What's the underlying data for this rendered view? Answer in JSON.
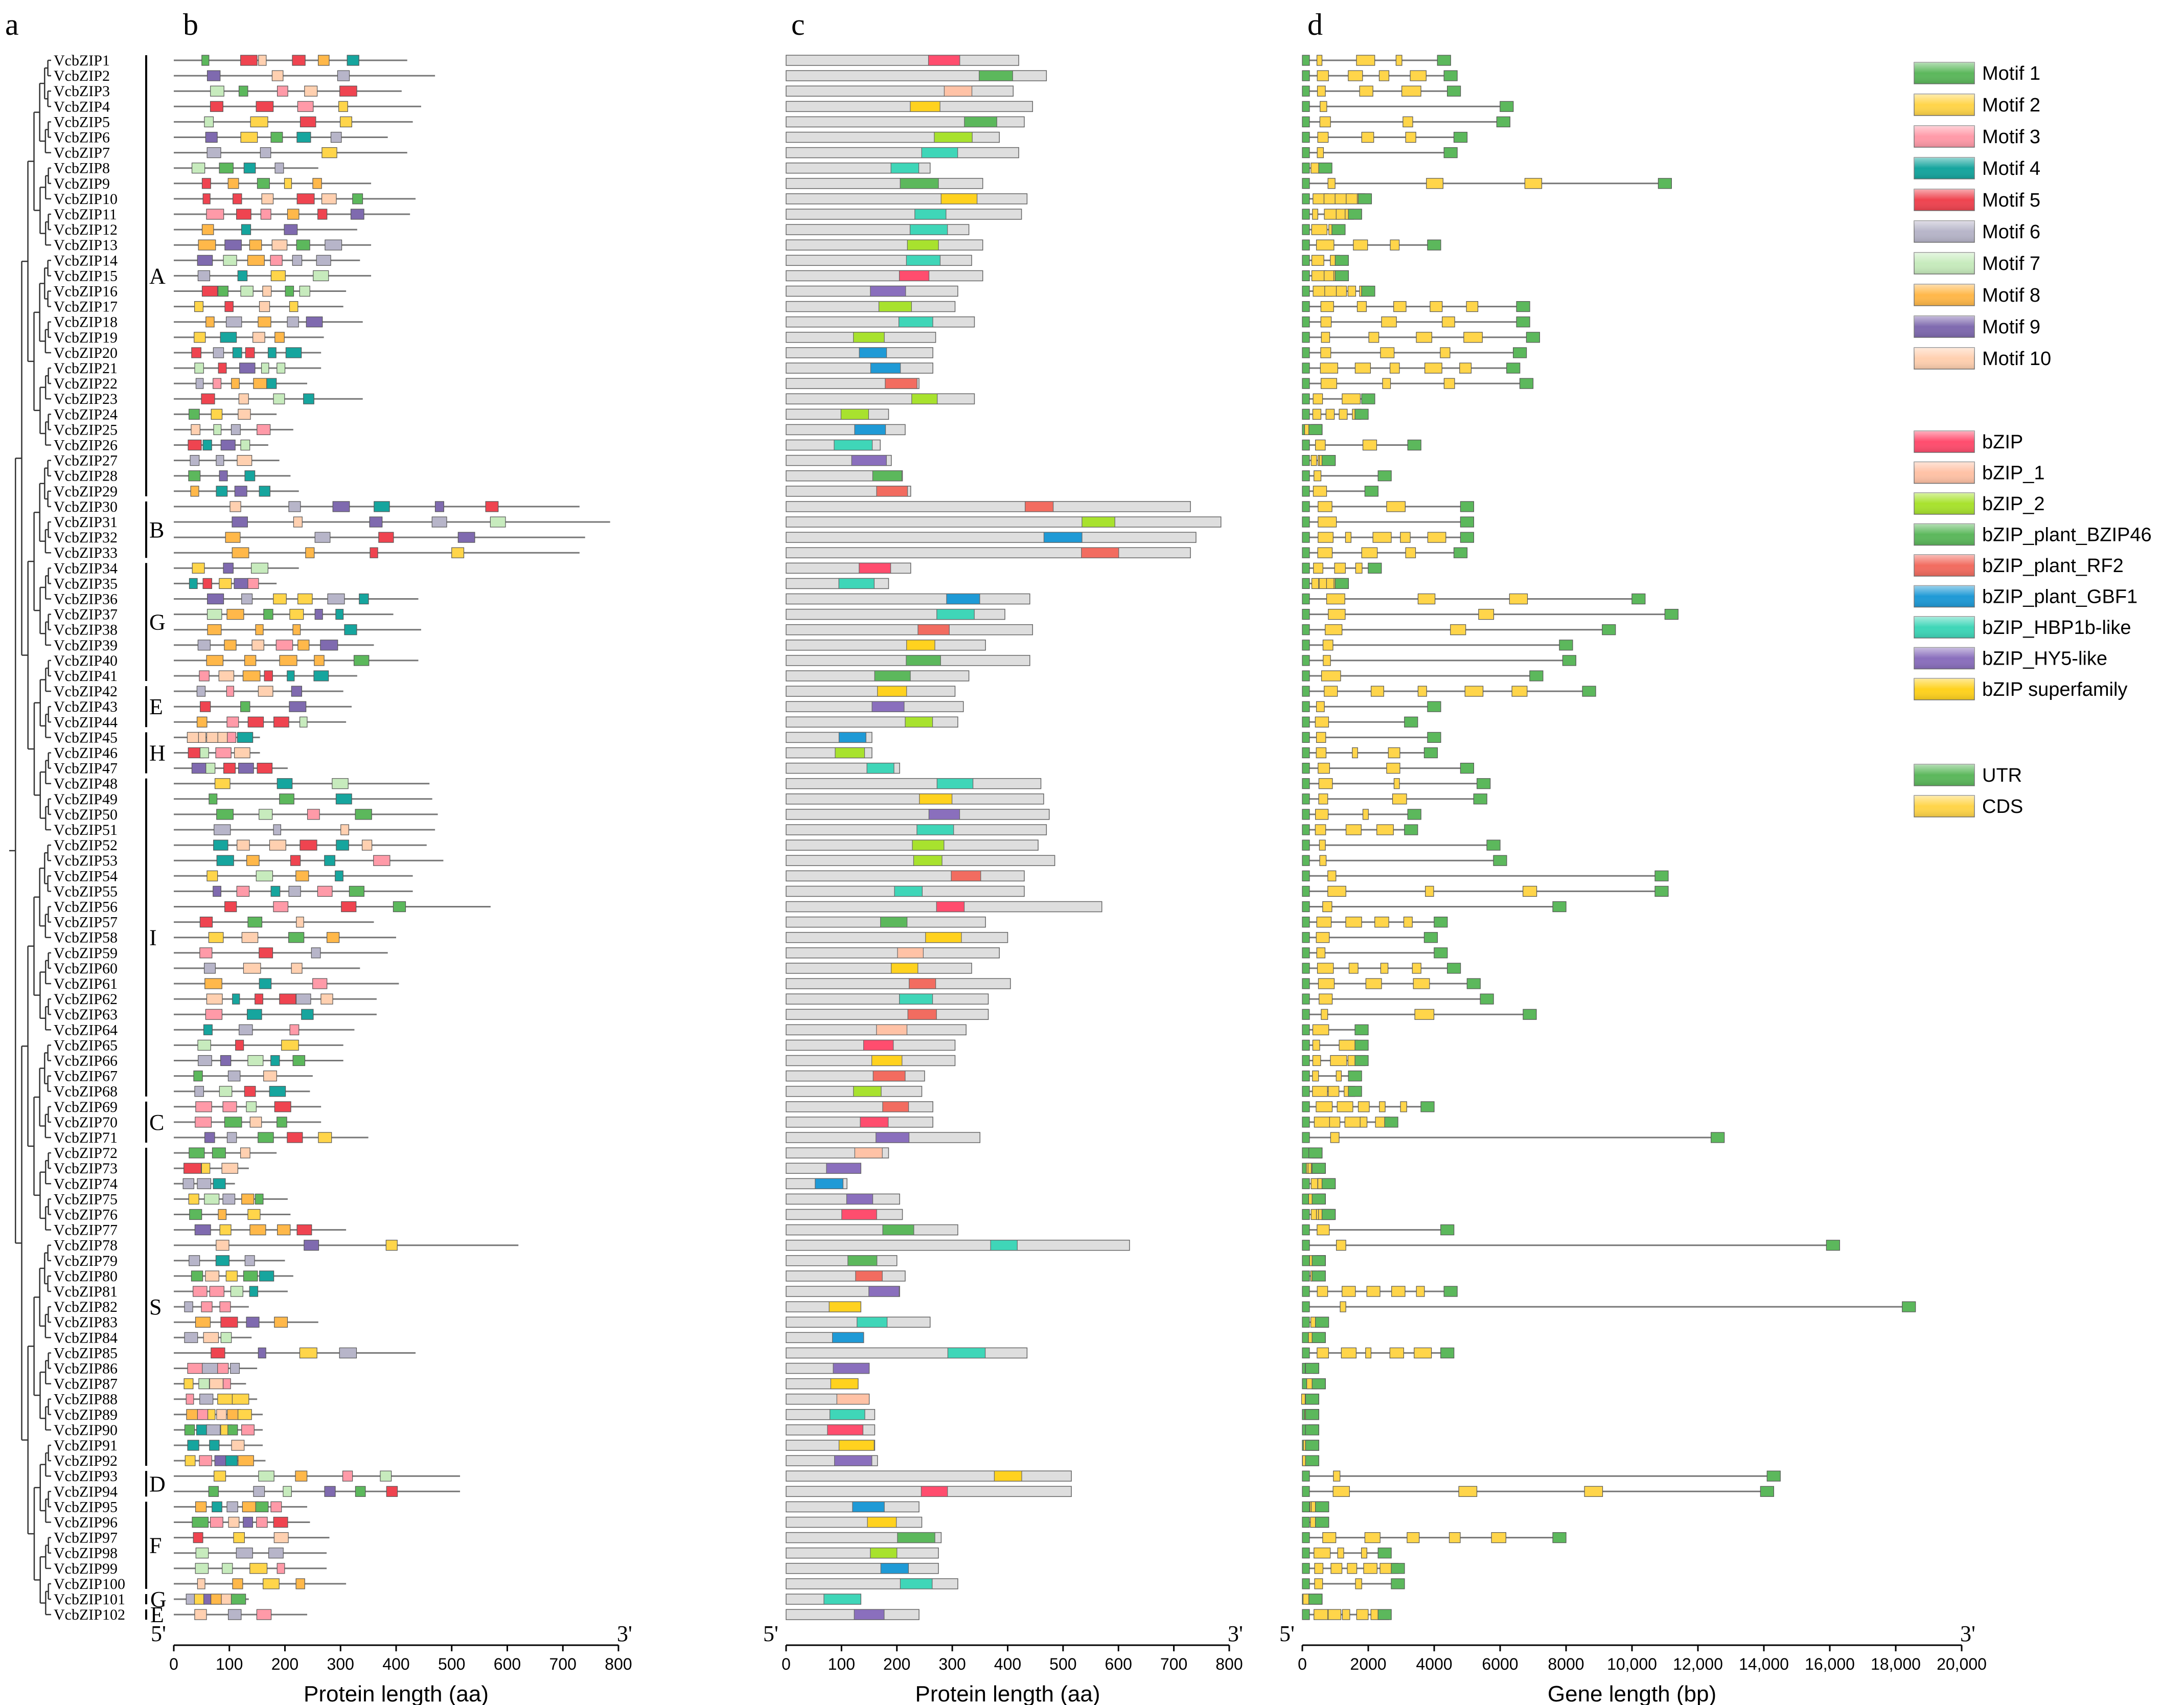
{
  "panels": {
    "a": "a",
    "b": "b",
    "c": "c",
    "d": "d"
  },
  "genes": [
    "VcbZIP1",
    "VcbZIP2",
    "VcbZIP3",
    "VcbZIP4",
    "VcbZIP5",
    "VcbZIP6",
    "VcbZIP7",
    "VcbZIP8",
    "VcbZIP9",
    "VcbZIP10",
    "VcbZIP11",
    "VcbZIP12",
    "VcbZIP13",
    "VcbZIP14",
    "VcbZIP15",
    "VcbZIP16",
    "VcbZIP17",
    "VcbZIP18",
    "VcbZIP19",
    "VcbZIP20",
    "VcbZIP21",
    "VcbZIP22",
    "VcbZIP23",
    "VcbZIP24",
    "VcbZIP25",
    "VcbZIP26",
    "VcbZIP27",
    "VcbZIP28",
    "VcbZIP29",
    "VcbZIP30",
    "VcbZIP31",
    "VcbZIP32",
    "VcbZIP33",
    "VcbZIP34",
    "VcbZIP35",
    "VcbZIP36",
    "VcbZIP37",
    "VcbZIP38",
    "VcbZIP39",
    "VcbZIP40",
    "VcbZIP41",
    "VcbZIP42",
    "VcbZIP43",
    "VcbZIP44",
    "VcbZIP45",
    "VcbZIP46",
    "VcbZIP47",
    "VcbZIP48",
    "VcbZIP49",
    "VcbZIP50",
    "VcbZIP51",
    "VcbZIP52",
    "VcbZIP53",
    "VcbZIP54",
    "VcbZIP55",
    "VcbZIP56",
    "VcbZIP57",
    "VcbZIP58",
    "VcbZIP59",
    "VcbZIP60",
    "VcbZIP61",
    "VcbZIP62",
    "VcbZIP63",
    "VcbZIP64",
    "VcbZIP65",
    "VcbZIP66",
    "VcbZIP67",
    "VcbZIP68",
    "VcbZIP69",
    "VcbZIP70",
    "VcbZIP71",
    "VcbZIP72",
    "VcbZIP73",
    "VcbZIP74",
    "VcbZIP75",
    "VcbZIP76",
    "VcbZIP77",
    "VcbZIP78",
    "VcbZIP79",
    "VcbZIP80",
    "VcbZIP81",
    "VcbZIP82",
    "VcbZIP83",
    "VcbZIP84",
    "VcbZIP85",
    "VcbZIP86",
    "VcbZIP87",
    "VcbZIP88",
    "VcbZIP89",
    "VcbZIP90",
    "VcbZIP91",
    "VcbZIP92",
    "VcbZIP93",
    "VcbZIP94",
    "VcbZIP95",
    "VcbZIP96",
    "VcbZIP97",
    "VcbZIP98",
    "VcbZIP99",
    "VcbZIP100",
    "VcbZIP101",
    "VcbZIP102"
  ],
  "groups": [
    {
      "label": "A",
      "from": 1,
      "to": 29
    },
    {
      "label": "B",
      "from": 30,
      "to": 33
    },
    {
      "label": "G",
      "from": 34,
      "to": 41
    },
    {
      "label": "E",
      "from": 42,
      "to": 44
    },
    {
      "label": "H",
      "from": 45,
      "to": 47
    },
    {
      "label": "I",
      "from": 48,
      "to": 68
    },
    {
      "label": "C",
      "from": 69,
      "to": 71
    },
    {
      "label": "S",
      "from": 72,
      "to": 92
    },
    {
      "label": "D",
      "from": 93,
      "to": 94
    },
    {
      "label": "F",
      "from": 95,
      "to": 100
    },
    {
      "label": "G",
      "from": 101,
      "to": 101
    },
    {
      "label": "E",
      "from": 102,
      "to": 102
    }
  ],
  "protein_lengths": [
    420,
    470,
    410,
    445,
    430,
    385,
    420,
    260,
    355,
    435,
    425,
    330,
    355,
    335,
    355,
    310,
    305,
    340,
    270,
    265,
    265,
    240,
    340,
    185,
    215,
    170,
    190,
    210,
    225,
    730,
    785,
    740,
    730,
    225,
    185,
    440,
    395,
    445,
    360,
    440,
    330,
    305,
    320,
    310,
    155,
    155,
    205,
    460,
    465,
    475,
    470,
    455,
    485,
    430,
    430,
    570,
    360,
    400,
    385,
    335,
    405,
    365,
    365,
    325,
    305,
    305,
    250,
    245,
    265,
    265,
    350,
    185,
    135,
    110,
    205,
    210,
    310,
    620,
    200,
    215,
    205,
    135,
    260,
    140,
    435,
    150,
    130,
    150,
    160,
    160,
    160,
    165,
    515,
    515,
    240,
    245,
    280,
    275,
    275,
    310,
    135,
    240
  ],
  "gene_lengths": [
    4500,
    4700,
    4800,
    6400,
    6300,
    5000,
    4700,
    900,
    11200,
    2100,
    1800,
    1300,
    4200,
    1400,
    1400,
    2200,
    6900,
    6900,
    7200,
    6800,
    6600,
    7000,
    2200,
    2000,
    600,
    3600,
    1000,
    2700,
    2300,
    5200,
    5200,
    5200,
    5000,
    2400,
    1400,
    10400,
    11400,
    9500,
    8200,
    8300,
    7300,
    8900,
    4200,
    3500,
    4200,
    4100,
    5200,
    5700,
    5600,
    3600,
    3500,
    6000,
    6200,
    11100,
    11100,
    8000,
    4400,
    4100,
    4400,
    4800,
    5400,
    5800,
    7100,
    2000,
    2000,
    2000,
    1800,
    1800,
    4000,
    2900,
    12800,
    600,
    700,
    1000,
    700,
    1000,
    4600,
    16300,
    700,
    700,
    4700,
    18600,
    800,
    700,
    4600,
    500,
    700,
    500,
    500,
    500,
    500,
    500,
    14500,
    14300,
    800,
    800,
    8000,
    2700,
    3100,
    3100,
    600,
    2700
  ],
  "motif_legend": [
    {
      "name": "Motif 1",
      "color": "#5cb85c"
    },
    {
      "name": "Motif 2",
      "color": "#ffd54a"
    },
    {
      "name": "Motif 3",
      "color": "#ff9aa8"
    },
    {
      "name": "Motif 4",
      "color": "#16a59e"
    },
    {
      "name": "Motif 5",
      "color": "#ef4450"
    },
    {
      "name": "Motif 6",
      "color": "#b7b5c9"
    },
    {
      "name": "Motif 7",
      "color": "#c7ebbd"
    },
    {
      "name": "Motif 8",
      "color": "#ffb84a"
    },
    {
      "name": "Motif 9",
      "color": "#7f6aaf"
    },
    {
      "name": "Motif 10",
      "color": "#ffd0b0"
    }
  ],
  "domain_legend": [
    {
      "name": "bZIP",
      "color": "#ff4d6e"
    },
    {
      "name": "bZIP_1",
      "color": "#ffc2a6"
    },
    {
      "name": "bZIP_2",
      "color": "#a8e22e"
    },
    {
      "name": "bZIP_plant_BZIP46",
      "color": "#5cb85c"
    },
    {
      "name": "bZIP_plant_RF2",
      "color": "#f26c60"
    },
    {
      "name": "bZIP_plant_GBF1",
      "color": "#1f9ad6"
    },
    {
      "name": "bZIP_HBP1b-like",
      "color": "#3fd6b8"
    },
    {
      "name": "bZIP_HY5-like",
      "color": "#8a6fbd"
    },
    {
      "name": "bZIP superfamily",
      "color": "#ffd21f"
    }
  ],
  "structure_legend": [
    {
      "name": "UTR",
      "color": "#5cb85c"
    },
    {
      "name": "CDS",
      "color": "#ffd54a"
    }
  ],
  "axes": {
    "b": {
      "title": "Protein length (aa)",
      "ticks": [
        "0",
        "100",
        "200",
        "300",
        "400",
        "500",
        "600",
        "700",
        "800"
      ],
      "max": 800
    },
    "c": {
      "title": "Protein length (aa)",
      "ticks": [
        "0",
        "100",
        "200",
        "300",
        "400",
        "500",
        "600",
        "700",
        "800"
      ],
      "max": 800
    },
    "d": {
      "title": "Gene length (bp)",
      "ticks": [
        "0",
        "2000",
        "4000",
        "6000",
        "8000",
        "10,000",
        "12,000",
        "14,000",
        "16,000",
        "18,000",
        "20,000"
      ],
      "max": 20000
    }
  },
  "end_labels": {
    "five": "5'",
    "three": "3'"
  }
}
